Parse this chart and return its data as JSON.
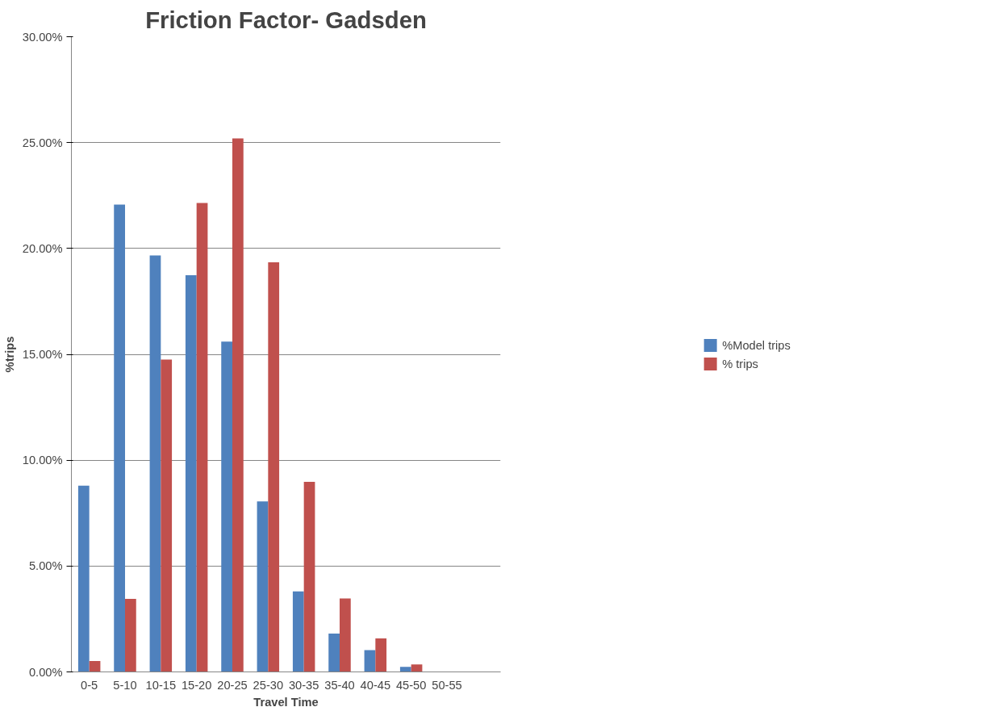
{
  "chart_data": {
    "type": "bar",
    "title": "Friction Factor- Gadsden",
    "xlabel": "Travel Time",
    "ylabel": "%trips",
    "categories": [
      "0-5",
      "5-10",
      "10-15",
      "15-20",
      "20-25",
      "25-30",
      "30-35",
      "35-40",
      "40-45",
      "45-50",
      "50-55",
      null
    ],
    "series": [
      {
        "name": "%Model trips",
        "color": "#4f81bd",
        "values": [
          8.8,
          22.07,
          19.67,
          18.74,
          15.6,
          8.05,
          3.8,
          1.81,
          1.03,
          0.24,
          0.02,
          null
        ]
      },
      {
        "name": "% trips",
        "color": "#c0504d",
        "values": [
          0.51,
          3.45,
          14.75,
          22.15,
          25.2,
          19.35,
          8.98,
          3.47,
          1.58,
          0.35,
          0.01,
          null
        ]
      }
    ],
    "ylim": [
      0,
      30
    ],
    "yticks": [
      {
        "value": 0,
        "label": "0.00%"
      },
      {
        "value": 5,
        "label": "5.00%"
      },
      {
        "value": 10,
        "label": "10.00%"
      },
      {
        "value": 15,
        "label": "15.00%"
      },
      {
        "value": 20,
        "label": "20.00%"
      },
      {
        "value": 25,
        "label": "25.00%"
      },
      {
        "value": 30,
        "label": "30.00%"
      }
    ],
    "grid": "y",
    "legend": "right"
  }
}
